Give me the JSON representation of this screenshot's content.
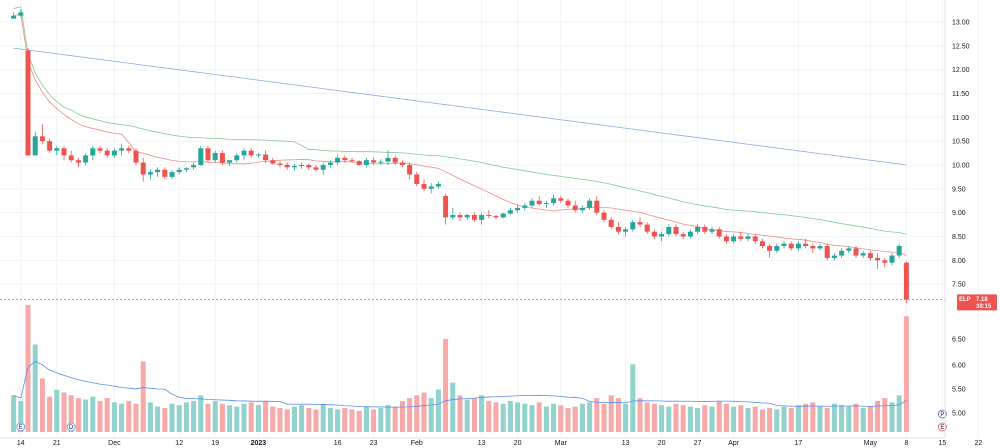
{
  "chart_data": {
    "type": "candlestick",
    "ticker": "ELP",
    "last_price": "7.18",
    "countdown": "38:15",
    "price_axis": {
      "range": [
        7.0,
        13.25
      ],
      "ticks": [
        "13.00",
        "12.50",
        "12.00",
        "11.50",
        "11.00",
        "10.50",
        "10.00",
        "9.50",
        "9.00",
        "8.50",
        "8.00",
        "7.50"
      ]
    },
    "volume_axis_ticks": [
      "6.50",
      "6.00",
      "5.50",
      "5.00"
    ],
    "x_ticks": [
      {
        "label": "14",
        "bar": 1
      },
      {
        "label": "21",
        "bar": 6
      },
      {
        "label": "Dec",
        "bar": 14
      },
      {
        "label": "12",
        "bar": 23
      },
      {
        "label": "19",
        "bar": 28
      },
      {
        "label": "2023",
        "bar": 34,
        "bold": true
      },
      {
        "label": "16",
        "bar": 45
      },
      {
        "label": "23",
        "bar": 50
      },
      {
        "label": "Feb",
        "bar": 56
      },
      {
        "label": "13",
        "bar": 65
      },
      {
        "label": "20",
        "bar": 70
      },
      {
        "label": "Mar",
        "bar": 76
      },
      {
        "label": "13",
        "bar": 85
      },
      {
        "label": "20",
        "bar": 90
      },
      {
        "label": "27",
        "bar": 95
      },
      {
        "label": "Apr",
        "bar": 100
      },
      {
        "label": "17",
        "bar": 109
      },
      {
        "label": "May",
        "bar": 119
      },
      {
        "label": "8",
        "bar": 124
      },
      {
        "label": "15",
        "bar": 129
      },
      {
        "label": "22",
        "bar": 134
      }
    ],
    "colors": {
      "up": "#26a69a",
      "down": "#ef5350",
      "up_volume": "#92d2cc",
      "down_volume": "#f7a9a7",
      "ma_short": "#f28b82",
      "ma_medium": "#81c995",
      "ma_long": "#8fa9e6",
      "volume_ma": "#5b8def"
    },
    "candles": [
      [
        13.07,
        13.2,
        13.07,
        13.13
      ],
      [
        13.13,
        13.25,
        13.1,
        13.2
      ],
      [
        12.4,
        12.45,
        10.2,
        10.2
      ],
      [
        10.2,
        10.7,
        10.2,
        10.6
      ],
      [
        10.6,
        10.85,
        10.45,
        10.5
      ],
      [
        10.5,
        10.55,
        10.25,
        10.3
      ],
      [
        10.3,
        10.4,
        10.2,
        10.35
      ],
      [
        10.35,
        10.4,
        10.1,
        10.2
      ],
      [
        10.2,
        10.3,
        10.05,
        10.1
      ],
      [
        10.1,
        10.15,
        9.95,
        10.05
      ],
      [
        10.05,
        10.25,
        10.0,
        10.2
      ],
      [
        10.2,
        10.4,
        10.1,
        10.35
      ],
      [
        10.35,
        10.4,
        10.25,
        10.3
      ],
      [
        10.3,
        10.35,
        10.15,
        10.2
      ],
      [
        10.2,
        10.35,
        10.15,
        10.3
      ],
      [
        10.3,
        10.45,
        10.2,
        10.35
      ],
      [
        10.35,
        10.4,
        10.25,
        10.3
      ],
      [
        10.3,
        10.35,
        10.0,
        10.05
      ],
      [
        10.05,
        10.15,
        9.65,
        9.8
      ],
      [
        9.8,
        9.9,
        9.7,
        9.85
      ],
      [
        9.85,
        9.95,
        9.75,
        9.9
      ],
      [
        9.9,
        9.95,
        9.7,
        9.75
      ],
      [
        9.75,
        9.9,
        9.7,
        9.85
      ],
      [
        9.85,
        9.95,
        9.8,
        9.9
      ],
      [
        9.9,
        9.95,
        9.85,
        9.93
      ],
      [
        9.95,
        10.05,
        9.9,
        10.0
      ],
      [
        10.0,
        10.4,
        9.98,
        10.35
      ],
      [
        10.35,
        10.4,
        10.05,
        10.1
      ],
      [
        10.1,
        10.3,
        10.05,
        10.25
      ],
      [
        10.25,
        10.3,
        10.0,
        10.05
      ],
      [
        10.05,
        10.1,
        9.98,
        10.1
      ],
      [
        10.1,
        10.25,
        10.05,
        10.2
      ],
      [
        10.2,
        10.35,
        10.1,
        10.3
      ],
      [
        10.3,
        10.35,
        10.15,
        10.2
      ],
      [
        10.2,
        10.25,
        10.15,
        10.22
      ],
      [
        10.22,
        10.3,
        10.05,
        10.1
      ],
      [
        10.1,
        10.15,
        10.0,
        10.03
      ],
      [
        10.03,
        10.08,
        9.95,
        10.0
      ],
      [
        10.0,
        10.05,
        9.9,
        9.95
      ],
      [
        9.95,
        10.02,
        9.88,
        9.98
      ],
      [
        9.98,
        10.05,
        9.92,
        10.0
      ],
      [
        10.0,
        10.03,
        9.9,
        9.95
      ],
      [
        9.95,
        10.0,
        9.85,
        9.9
      ],
      [
        9.9,
        10.05,
        9.8,
        10.0
      ],
      [
        10.0,
        10.1,
        9.95,
        10.05
      ],
      [
        10.05,
        10.2,
        10.0,
        10.15
      ],
      [
        10.15,
        10.2,
        10.05,
        10.1
      ],
      [
        10.1,
        10.15,
        10.05,
        10.08
      ],
      [
        10.08,
        10.1,
        9.98,
        10.0
      ],
      [
        10.0,
        10.15,
        9.95,
        10.1
      ],
      [
        10.1,
        10.15,
        10.0,
        10.05
      ],
      [
        10.05,
        10.12,
        10.0,
        10.07
      ],
      [
        10.07,
        10.3,
        10.0,
        10.15
      ],
      [
        10.15,
        10.2,
        10.0,
        10.05
      ],
      [
        10.05,
        10.1,
        9.95,
        10.0
      ],
      [
        10.0,
        10.05,
        9.7,
        9.8
      ],
      [
        9.8,
        9.85,
        9.55,
        9.6
      ],
      [
        9.6,
        9.7,
        9.45,
        9.5
      ],
      [
        9.5,
        9.62,
        9.4,
        9.55
      ],
      [
        9.55,
        9.65,
        9.5,
        9.6
      ],
      [
        9.35,
        9.4,
        8.75,
        8.9
      ],
      [
        8.9,
        9.1,
        8.85,
        8.95
      ],
      [
        8.95,
        9.0,
        8.82,
        8.9
      ],
      [
        8.9,
        8.98,
        8.85,
        8.95
      ],
      [
        8.95,
        9.0,
        8.8,
        8.85
      ],
      [
        8.85,
        9.0,
        8.75,
        8.95
      ],
      [
        8.95,
        9.05,
        8.88,
        8.93
      ],
      [
        8.93,
        8.95,
        8.85,
        8.9
      ],
      [
        8.9,
        9.0,
        8.88,
        8.98
      ],
      [
        8.98,
        9.1,
        8.95,
        9.05
      ],
      [
        9.05,
        9.15,
        9.0,
        9.1
      ],
      [
        9.1,
        9.2,
        9.05,
        9.15
      ],
      [
        9.15,
        9.3,
        9.1,
        9.25
      ],
      [
        9.25,
        9.35,
        9.15,
        9.18
      ],
      [
        9.18,
        9.25,
        9.1,
        9.2
      ],
      [
        9.2,
        9.38,
        9.15,
        9.3
      ],
      [
        9.3,
        9.35,
        9.2,
        9.25
      ],
      [
        9.25,
        9.3,
        9.1,
        9.15
      ],
      [
        9.15,
        9.25,
        9.0,
        9.05
      ],
      [
        9.05,
        9.15,
        9.0,
        9.1
      ],
      [
        9.1,
        9.3,
        9.05,
        9.25
      ],
      [
        9.25,
        9.35,
        8.95,
        9.0
      ],
      [
        9.0,
        9.05,
        8.8,
        8.85
      ],
      [
        8.85,
        8.9,
        8.65,
        8.7
      ],
      [
        8.7,
        8.8,
        8.55,
        8.6
      ],
      [
        8.6,
        8.7,
        8.5,
        8.65
      ],
      [
        8.65,
        8.85,
        8.6,
        8.8
      ],
      [
        8.8,
        8.9,
        8.7,
        8.75
      ],
      [
        8.75,
        8.8,
        8.55,
        8.6
      ],
      [
        8.6,
        8.65,
        8.45,
        8.5
      ],
      [
        8.5,
        8.6,
        8.4,
        8.55
      ],
      [
        8.55,
        8.75,
        8.5,
        8.7
      ],
      [
        8.7,
        8.75,
        8.5,
        8.55
      ],
      [
        8.55,
        8.6,
        8.45,
        8.5
      ],
      [
        8.5,
        8.65,
        8.45,
        8.6
      ],
      [
        8.6,
        8.75,
        8.55,
        8.7
      ],
      [
        8.7,
        8.75,
        8.55,
        8.6
      ],
      [
        8.6,
        8.7,
        8.55,
        8.65
      ],
      [
        8.65,
        8.7,
        8.45,
        8.5
      ],
      [
        8.5,
        8.55,
        8.35,
        8.4
      ],
      [
        8.4,
        8.55,
        8.35,
        8.5
      ],
      [
        8.5,
        8.6,
        8.4,
        8.45
      ],
      [
        8.45,
        8.55,
        8.4,
        8.5
      ],
      [
        8.5,
        8.55,
        8.35,
        8.4
      ],
      [
        8.4,
        8.45,
        8.25,
        8.3
      ],
      [
        8.3,
        8.35,
        8.05,
        8.2
      ],
      [
        8.2,
        8.35,
        8.15,
        8.3
      ],
      [
        8.3,
        8.4,
        8.25,
        8.35
      ],
      [
        8.35,
        8.4,
        8.2,
        8.25
      ],
      [
        8.25,
        8.4,
        8.2,
        8.35
      ],
      [
        8.35,
        8.45,
        8.25,
        8.3
      ],
      [
        8.3,
        8.35,
        8.15,
        8.25
      ],
      [
        8.25,
        8.35,
        8.2,
        8.3
      ],
      [
        8.3,
        8.35,
        8.0,
        8.05
      ],
      [
        8.05,
        8.15,
        8.0,
        8.1
      ],
      [
        8.1,
        8.25,
        8.05,
        8.2
      ],
      [
        8.2,
        8.3,
        8.15,
        8.25
      ],
      [
        8.25,
        8.3,
        8.05,
        8.1
      ],
      [
        8.1,
        8.2,
        8.05,
        8.15
      ],
      [
        8.15,
        8.2,
        8.0,
        8.05
      ],
      [
        8.05,
        8.15,
        7.82,
        8.0
      ],
      [
        8.0,
        8.05,
        7.85,
        7.95
      ],
      [
        7.95,
        8.15,
        7.9,
        8.1
      ],
      [
        8.1,
        8.35,
        8.05,
        8.3
      ],
      [
        7.95,
        7.98,
        7.1,
        7.18
      ]
    ],
    "volume": [
      2.6,
      2.2,
      9.0,
      6.2,
      3.8,
      2.5,
      3.0,
      2.8,
      2.6,
      2.4,
      2.3,
      2.5,
      2.2,
      2.4,
      2.1,
      2.0,
      2.2,
      2.0,
      5.0,
      2.1,
      1.8,
      1.7,
      2.0,
      1.9,
      2.1,
      2.2,
      2.6,
      2.0,
      2.2,
      2.0,
      1.9,
      1.8,
      2.0,
      2.1,
      1.9,
      2.2,
      1.8,
      1.7,
      1.6,
      1.8,
      1.9,
      1.7,
      1.6,
      2.0,
      1.7,
      1.6,
      1.7,
      1.6,
      1.5,
      1.8,
      1.6,
      1.7,
      1.9,
      1.8,
      2.2,
      2.4,
      2.6,
      2.8,
      2.4,
      3.0,
      6.6,
      3.5,
      2.6,
      2.3,
      2.4,
      2.6,
      2.2,
      2.1,
      2.0,
      2.2,
      2.1,
      2.0,
      1.9,
      2.1,
      1.8,
      2.0,
      1.9,
      1.7,
      1.8,
      2.0,
      2.1,
      2.4,
      2.0,
      2.6,
      2.4,
      2.0,
      4.8,
      2.4,
      2.1,
      2.0,
      1.9,
      1.8,
      2.0,
      1.9,
      1.8,
      1.7,
      1.9,
      1.8,
      2.2,
      2.0,
      1.8,
      1.9,
      1.7,
      1.8,
      1.6,
      1.7,
      1.6,
      1.8,
      1.7,
      1.9,
      2.0,
      2.1,
      1.8,
      1.7,
      2.0,
      1.9,
      1.8,
      2.0,
      1.7,
      1.8,
      2.2,
      2.4,
      2.1,
      2.6,
      8.2
    ],
    "events": [
      {
        "label": "E",
        "bar": 1,
        "color": "#5b8def"
      },
      {
        "label": "D",
        "bar": 8,
        "color": "#5b8def"
      },
      {
        "label": "E",
        "bar": 129,
        "color": "#ef5350"
      },
      {
        "label": "P",
        "bar": 129,
        "color": "#7e57c2"
      }
    ]
  }
}
